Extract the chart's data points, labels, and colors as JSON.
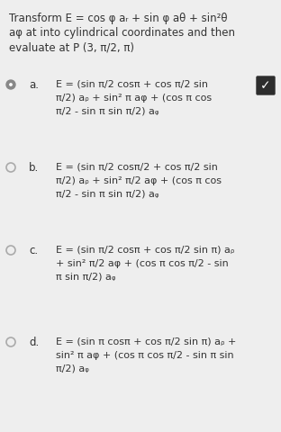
{
  "bg_color": "#eeeeee",
  "text_color": "#333333",
  "title_lines": [
    "Transform E = cos φ aᵣ + sin φ aθ + sin²θ",
    "aφ at into cylindrical coordinates and then",
    "evaluate at P (3, π/2, π)"
  ],
  "options": [
    {
      "label": "a.",
      "selected": true,
      "correct": true,
      "lines": [
        "E = (sin π/2 cosπ + cos π/2 sin",
        "π/2) aᵨ + sin² π aφ + (cos π cos",
        "π/2 - sin π sin π/2) aᵩ"
      ]
    },
    {
      "label": "b.",
      "selected": false,
      "correct": false,
      "lines": [
        "E = (sin π/2 cosπ/2 + cos π/2 sin",
        "π/2) aᵨ + sin² π/2 aφ + (cos π cos",
        "π/2 - sin π sin π/2) aᵩ"
      ]
    },
    {
      "label": "c.",
      "selected": false,
      "correct": false,
      "lines": [
        "E = (sin π/2 cosπ + cos π/2 sin π) aᵨ",
        "+ sin² π/2 aφ + (cos π cos π/2 - sin",
        "π sin π/2) aᵩ"
      ]
    },
    {
      "label": "d.",
      "selected": false,
      "correct": false,
      "lines": [
        "E = (sin π cosπ + cos π/2 sin π) aᵨ +",
        "sin² π aφ + (cos π cos π/2 - sin π sin",
        "π/2) aᵩ"
      ]
    }
  ],
  "font_size_title": 8.5,
  "font_size_option": 8.0,
  "font_size_label": 8.5,
  "radio_fill_selected": "#888888",
  "radio_fill_unselected": "none",
  "radio_edge_color": "#aaaaaa",
  "radio_edge_selected": "#888888"
}
